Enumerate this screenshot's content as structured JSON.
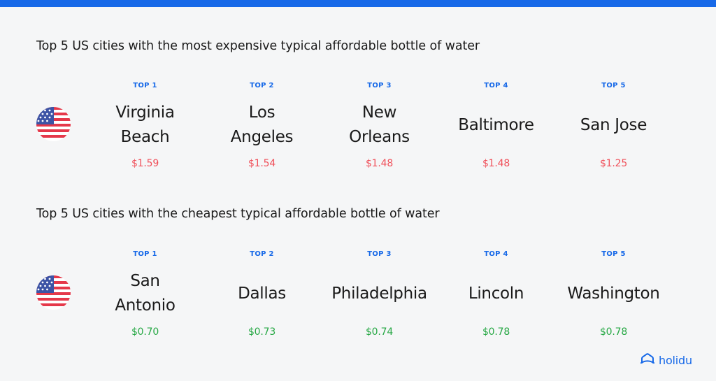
{
  "colors": {
    "accent_blue": "#1769e8",
    "price_expensive": "#f0505a",
    "price_cheap": "#27a845",
    "background": "#f5f6f7"
  },
  "sections": [
    {
      "heading": "Top 5 US cities with the most expensive typical affordable bottle of water",
      "flag_icon": "us-flag-icon",
      "items": [
        {
          "rank": "TOP 1",
          "city": "Virginia Beach",
          "price": "$1.59"
        },
        {
          "rank": "TOP 2",
          "city": "Los Angeles",
          "price": "$1.54"
        },
        {
          "rank": "TOP 3",
          "city": "New Orleans",
          "price": "$1.48"
        },
        {
          "rank": "TOP 4",
          "city": "Baltimore",
          "price": "$1.48"
        },
        {
          "rank": "TOP 5",
          "city": "San Jose",
          "price": "$1.25"
        }
      ]
    },
    {
      "heading": "Top 5 US cities with the cheapest typical affordable bottle of water",
      "flag_icon": "us-flag-icon",
      "items": [
        {
          "rank": "TOP 1",
          "city": "San Antonio",
          "price": "$0.70"
        },
        {
          "rank": "TOP 2",
          "city": "Dallas",
          "price": "$0.73"
        },
        {
          "rank": "TOP 3",
          "city": "Philadelphia",
          "price": "$0.74"
        },
        {
          "rank": "TOP 4",
          "city": "Lincoln",
          "price": "$0.78"
        },
        {
          "rank": "TOP 5",
          "city": "Washington",
          "price": "$0.78"
        }
      ]
    }
  ],
  "logo": {
    "text": "holidu",
    "icon": "holidu-house-icon"
  }
}
